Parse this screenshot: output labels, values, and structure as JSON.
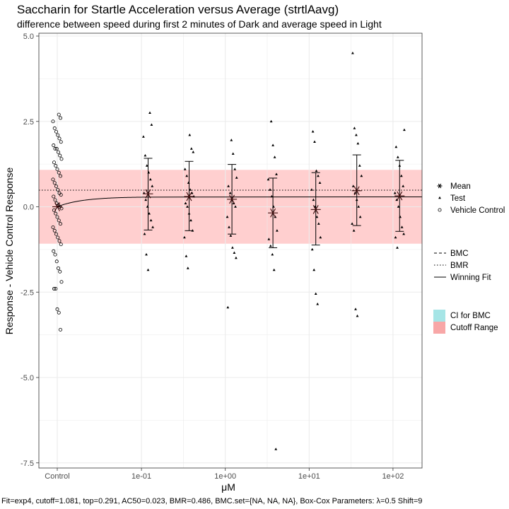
{
  "chart_data": {
    "type": "scatter",
    "title": "Saccharin for Startle Acceleration versus Average (strtlAavg)",
    "subtitle": "difference between speed during first 2 minutes of Dark and average speed in Light",
    "xlabel": "μM",
    "ylabel": "Response - Vehicle Control Response",
    "x_scale": "log10",
    "x_ticks": [
      "Control",
      "1e-01",
      "1e+00",
      "1e+01",
      "1e+02"
    ],
    "y_ticks": [
      "5.0",
      "2.5",
      "0.0",
      "-2.5",
      "-5.0",
      "-7.5"
    ],
    "ylim": [
      -7.6,
      5.0
    ],
    "grid": true,
    "cutoff_range": [
      -1.081,
      1.081
    ],
    "bmr_line": 0.486,
    "fit_curve": {
      "model": "exp4",
      "top": 0.291,
      "ac50": 0.023
    },
    "concentrations": [
      "0.12",
      "0.37",
      "1.2",
      "3.7",
      "12",
      "37",
      "120"
    ],
    "series": [
      {
        "name": "Vehicle Control",
        "x": "Control",
        "values": [
          2.7,
          2.6,
          2.5,
          2.3,
          2.2,
          2.1,
          2.0,
          1.9,
          1.8,
          1.7,
          1.7,
          1.6,
          1.5,
          1.4,
          1.3,
          1.2,
          1.1,
          1.0,
          0.9,
          0.8,
          0.7,
          0.6,
          0.5,
          0.4,
          0.35,
          0.3,
          0.2,
          0.1,
          0.05,
          0.0,
          -0.05,
          -0.1,
          -0.2,
          -0.3,
          -0.4,
          -0.5,
          -0.6,
          -0.7,
          -0.8,
          -0.9,
          -1.0,
          -1.1,
          -1.3,
          -1.4,
          -1.6,
          -1.8,
          -1.9,
          -2.2,
          -2.4,
          -2.4,
          -3.0,
          -3.1,
          -3.6
        ]
      },
      {
        "name": "Test",
        "points": [
          {
            "conc": "0.12",
            "values": [
              2.75,
              2.4,
              2.05,
              1.5,
              1.2,
              1.0,
              0.8,
              0.6,
              0.4,
              0.2,
              0.0,
              -0.2,
              -0.4,
              -0.6,
              -0.8,
              -1.4,
              -1.85
            ]
          },
          {
            "conc": "0.37",
            "values": [
              2.1,
              1.7,
              1.6,
              1.1,
              0.9,
              0.7,
              0.5,
              0.4,
              0.3,
              0.1,
              0.0,
              -0.2,
              -0.4,
              -0.7,
              -0.9,
              -1.45,
              -1.8
            ]
          },
          {
            "conc": "1.2",
            "values": [
              1.95,
              1.55,
              1.1,
              0.85,
              0.6,
              0.4,
              0.2,
              0.1,
              0.0,
              -0.3,
              -0.6,
              -0.85,
              -1.2,
              -1.35,
              -1.5,
              -2.95
            ]
          },
          {
            "conc": "3.7",
            "values": [
              2.5,
              1.8,
              1.45,
              0.95,
              0.8,
              0.5,
              0.3,
              0.0,
              -0.3,
              -0.7,
              -0.95,
              -1.15,
              -1.4,
              -1.85,
              -7.1
            ]
          },
          {
            "conc": "12",
            "values": [
              2.2,
              1.9,
              1.05,
              0.9,
              0.7,
              0.5,
              0.2,
              0.0,
              -0.3,
              -0.5,
              -0.9,
              -1.25,
              -1.85,
              -2.55,
              -2.85
            ]
          },
          {
            "conc": "37",
            "values": [
              4.5,
              2.3,
              2.1,
              1.85,
              1.2,
              0.9,
              0.6,
              0.4,
              0.2,
              0.0,
              -0.3,
              -0.5,
              -0.7,
              -3.0,
              -3.2
            ]
          },
          {
            "conc": "120",
            "values": [
              2.25,
              1.75,
              1.45,
              1.2,
              0.9,
              0.6,
              0.4,
              0.2,
              0.0,
              -0.3,
              -0.6,
              -0.8,
              -0.9,
              -1.2
            ]
          }
        ]
      },
      {
        "name": "Mean",
        "points": [
          {
            "conc": "Control",
            "mean": 0.0
          },
          {
            "conc": "0.12",
            "mean": 0.38,
            "ci": [
              -0.68,
              1.42
            ]
          },
          {
            "conc": "0.37",
            "mean": 0.3,
            "ci": [
              -0.7,
              1.33
            ]
          },
          {
            "conc": "1.2",
            "mean": 0.22,
            "ci": [
              -0.8,
              1.24
            ]
          },
          {
            "conc": "3.7",
            "mean": -0.18,
            "ci": [
              -1.2,
              0.84
            ]
          },
          {
            "conc": "12",
            "mean": -0.08,
            "ci": [
              -1.12,
              1.0
            ]
          },
          {
            "conc": "37",
            "mean": 0.47,
            "ci": [
              -0.55,
              1.52
            ]
          },
          {
            "conc": "120",
            "mean": 0.32,
            "ci": [
              -0.72,
              1.36
            ]
          }
        ]
      }
    ],
    "legend_points": [
      "Mean",
      "Test",
      "Vehicle Control"
    ],
    "legend_lines": [
      "BMC",
      "BMR",
      "Winning Fit"
    ],
    "legend_fills": [
      {
        "label": "CI for BMC",
        "color": "#a6e5e6"
      },
      {
        "label": "Cutoff Range",
        "color": "#f8a7a7"
      }
    ],
    "legend_placement": "right",
    "footer": "Fit=exp4, cutoff=1.081, top=0.291, AC50=0.023, BMR=0.486, BMC.set={NA, NA, NA}, Box-Cox Parameters: λ=0.5 Shift=9",
    "colors": {
      "cutoff_fill": "#ffcfcf",
      "panel_border": "#333333",
      "grid": "#ebebeb"
    }
  }
}
